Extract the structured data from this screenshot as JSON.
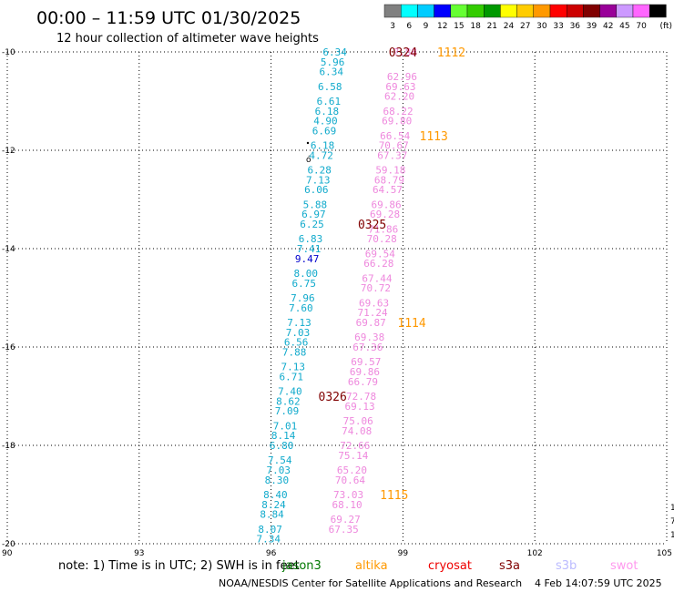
{
  "header": {
    "title": "00:00 – 11:59 UTC 01/30/2025",
    "subtitle": "12 hour collection of altimeter wave heights"
  },
  "legend": {
    "unit": "(ft)",
    "bins": [
      {
        "label": "3",
        "color": "#808080"
      },
      {
        "label": "6",
        "color": "#00ffff"
      },
      {
        "label": "9",
        "color": "#00ccff"
      },
      {
        "label": "12",
        "color": "#0000ff"
      },
      {
        "label": "15",
        "color": "#66ff33"
      },
      {
        "label": "18",
        "color": "#33cc00"
      },
      {
        "label": "21",
        "color": "#009900"
      },
      {
        "label": "24",
        "color": "#ffff00"
      },
      {
        "label": "27",
        "color": "#ffcc00"
      },
      {
        "label": "30",
        "color": "#ff9900"
      },
      {
        "label": "33",
        "color": "#ff0000"
      },
      {
        "label": "36",
        "color": "#cc0000"
      },
      {
        "label": "39",
        "color": "#800000"
      },
      {
        "label": "42",
        "color": "#990099"
      },
      {
        "label": "45",
        "color": "#cc99ff"
      },
      {
        "label": "70",
        "color": "#ff66ff"
      },
      {
        "label": "",
        "color": "#000000"
      }
    ]
  },
  "note": {
    "text": "note: 1) Time is in UTC; 2) SWH is in feet",
    "satellites": [
      {
        "name": "jason3",
        "color": "#007700"
      },
      {
        "name": "altika",
        "color": "#ff9900"
      },
      {
        "name": "cryosat",
        "color": "#ee0000"
      },
      {
        "name": "s3a",
        "color": "#800000"
      },
      {
        "name": "s3b",
        "color": "#bbbbff"
      },
      {
        "name": "swot",
        "color": "#ff99ee"
      }
    ]
  },
  "footer": {
    "credit": "NOAA/NESDIS Center for Satellite Applications and Research",
    "timestamp": "4 Feb 14:07:59 UTC 2025"
  },
  "chart_data": {
    "type": "scatter",
    "title": "00:00 – 11:59 UTC 01/30/2025",
    "subtitle": "12 hour collection of altimeter wave heights",
    "xlim": [
      90,
      105
    ],
    "ylim": [
      -20,
      -10
    ],
    "x_ticks": [
      90,
      93,
      96,
      99,
      102,
      105
    ],
    "y_ticks": [
      -10,
      -12,
      -14,
      -16,
      -18,
      -20
    ],
    "x_tick_labels": [
      "90",
      "93",
      "96",
      "99",
      "102",
      "105"
    ],
    "y_tick_labels": [
      "-10",
      "-12",
      "-14",
      "-16",
      "-18",
      "-20"
    ],
    "grid": true,
    "colors": {
      "cyan": "#11aacc",
      "blue": "#0000cc",
      "pink": "#ee88dd",
      "maroon": "#800000",
      "orange": "#ff9900"
    },
    "series": [
      {
        "name": "s3a",
        "color": "cyan",
        "points": [
          {
            "x": 97.45,
            "y": -10.0,
            "v": "6.34"
          },
          {
            "x": 97.4,
            "y": -10.2,
            "v": "5.96"
          },
          {
            "x": 97.37,
            "y": -10.4,
            "v": "6.34"
          },
          {
            "x": 97.34,
            "y": -10.7,
            "v": "6.58"
          },
          {
            "x": 97.31,
            "y": -11.0,
            "v": "6.61"
          },
          {
            "x": 97.27,
            "y": -11.2,
            "v": "6.18"
          },
          {
            "x": 97.24,
            "y": -11.4,
            "v": "4.90"
          },
          {
            "x": 97.21,
            "y": -11.6,
            "v": "6.69"
          },
          {
            "x": 97.17,
            "y": -11.9,
            "v": "6.18"
          },
          {
            "x": 97.14,
            "y": -12.1,
            "v": "4.72"
          },
          {
            "x": 97.1,
            "y": -12.4,
            "v": "6.28"
          },
          {
            "x": 97.07,
            "y": -12.6,
            "v": "7.13"
          },
          {
            "x": 97.03,
            "y": -12.8,
            "v": "6.06"
          },
          {
            "x": 97.0,
            "y": -13.1,
            "v": "5.88"
          },
          {
            "x": 96.97,
            "y": -13.3,
            "v": "6.97"
          },
          {
            "x": 96.93,
            "y": -13.5,
            "v": "6.25"
          },
          {
            "x": 96.9,
            "y": -13.8,
            "v": "6.83"
          },
          {
            "x": 96.86,
            "y": -14.0,
            "v": "7.41"
          },
          {
            "x": 96.82,
            "y": -14.2,
            "v": "9.47",
            "color": "blue"
          },
          {
            "x": 96.79,
            "y": -14.5,
            "v": "8.00"
          },
          {
            "x": 96.75,
            "y": -14.7,
            "v": "6.75"
          },
          {
            "x": 96.72,
            "y": -15.0,
            "v": "7.96"
          },
          {
            "x": 96.68,
            "y": -15.2,
            "v": "7.60"
          },
          {
            "x": 96.64,
            "y": -15.5,
            "v": "7.13"
          },
          {
            "x": 96.61,
            "y": -15.7,
            "v": "7.03"
          },
          {
            "x": 96.57,
            "y": -15.9,
            "v": "6.56"
          },
          {
            "x": 96.53,
            "y": -16.1,
            "v": "7.88"
          },
          {
            "x": 96.5,
            "y": -16.4,
            "v": "7.13"
          },
          {
            "x": 96.46,
            "y": -16.6,
            "v": "6.71"
          },
          {
            "x": 96.43,
            "y": -16.9,
            "v": "7.40"
          },
          {
            "x": 96.39,
            "y": -17.1,
            "v": "8.62"
          },
          {
            "x": 96.36,
            "y": -17.3,
            "v": "7.09"
          },
          {
            "x": 96.32,
            "y": -17.6,
            "v": "7.01"
          },
          {
            "x": 96.28,
            "y": -17.8,
            "v": "8.14"
          },
          {
            "x": 96.24,
            "y": -18.0,
            "v": "6.80"
          },
          {
            "x": 96.2,
            "y": -18.3,
            "v": "7.54"
          },
          {
            "x": 96.17,
            "y": -18.5,
            "v": "7.03"
          },
          {
            "x": 96.13,
            "y": -18.7,
            "v": "8.30"
          },
          {
            "x": 96.1,
            "y": -19.0,
            "v": "8.40"
          },
          {
            "x": 96.06,
            "y": -19.2,
            "v": "8.24"
          },
          {
            "x": 96.02,
            "y": -19.4,
            "v": "8.84"
          },
          {
            "x": 95.98,
            "y": -19.7,
            "v": "8.07"
          },
          {
            "x": 95.94,
            "y": -19.9,
            "v": "7.34"
          }
        ]
      },
      {
        "name": "swot",
        "color": "pink",
        "points": [
          {
            "x": 99.05,
            "y": -10.0,
            "v": "?.88"
          },
          {
            "x": 98.98,
            "y": -10.5,
            "v": "62.96"
          },
          {
            "x": 98.95,
            "y": -10.7,
            "v": "69.63"
          },
          {
            "x": 98.92,
            "y": -10.9,
            "v": "62.20"
          },
          {
            "x": 98.89,
            "y": -11.2,
            "v": "68.22"
          },
          {
            "x": 98.86,
            "y": -11.4,
            "v": "69.80"
          },
          {
            "x": 98.82,
            "y": -11.7,
            "v": "66.54"
          },
          {
            "x": 98.79,
            "y": -11.9,
            "v": "70.67"
          },
          {
            "x": 98.76,
            "y": -12.1,
            "v": "67.37"
          },
          {
            "x": 98.72,
            "y": -12.4,
            "v": "59.18"
          },
          {
            "x": 98.69,
            "y": -12.6,
            "v": "68.79"
          },
          {
            "x": 98.65,
            "y": -12.8,
            "v": "64.57"
          },
          {
            "x": 98.62,
            "y": -13.1,
            "v": "69.86"
          },
          {
            "x": 98.59,
            "y": -13.3,
            "v": "69.28"
          },
          {
            "x": 98.55,
            "y": -13.6,
            "v": "71.86"
          },
          {
            "x": 98.52,
            "y": -13.8,
            "v": "70.28"
          },
          {
            "x": 98.48,
            "y": -14.1,
            "v": "69.54"
          },
          {
            "x": 98.45,
            "y": -14.3,
            "v": "66.28"
          },
          {
            "x": 98.41,
            "y": -14.6,
            "v": "67.44"
          },
          {
            "x": 98.38,
            "y": -14.8,
            "v": "70.72"
          },
          {
            "x": 98.34,
            "y": -15.1,
            "v": "69.63"
          },
          {
            "x": 98.31,
            "y": -15.3,
            "v": "71.24"
          },
          {
            "x": 98.27,
            "y": -15.5,
            "v": "69.87"
          },
          {
            "x": 98.24,
            "y": -15.8,
            "v": "69.38"
          },
          {
            "x": 98.2,
            "y": -16.0,
            "v": "67.36"
          },
          {
            "x": 98.16,
            "y": -16.3,
            "v": "69.57"
          },
          {
            "x": 98.13,
            "y": -16.5,
            "v": "69.86"
          },
          {
            "x": 98.09,
            "y": -16.7,
            "v": "66.79"
          },
          {
            "x": 98.05,
            "y": -17.0,
            "v": "72.78"
          },
          {
            "x": 98.02,
            "y": -17.2,
            "v": "69.13"
          },
          {
            "x": 97.98,
            "y": -17.5,
            "v": "75.06"
          },
          {
            "x": 97.95,
            "y": -17.7,
            "v": "74.08"
          },
          {
            "x": 97.91,
            "y": -18.0,
            "v": "72.66"
          },
          {
            "x": 97.87,
            "y": -18.2,
            "v": "75.14"
          },
          {
            "x": 97.84,
            "y": -18.5,
            "v": "65.20"
          },
          {
            "x": 97.8,
            "y": -18.7,
            "v": "70.64"
          },
          {
            "x": 97.76,
            "y": -19.0,
            "v": "73.03"
          },
          {
            "x": 97.73,
            "y": -19.2,
            "v": "68.10"
          },
          {
            "x": 97.69,
            "y": -19.5,
            "v": "69.27"
          },
          {
            "x": 97.65,
            "y": -19.7,
            "v": "67.35"
          }
        ]
      }
    ],
    "pass_labels": [
      {
        "text": "0324",
        "x": 99.0,
        "y": -10.0,
        "color": "maroon"
      },
      {
        "text": "0325",
        "x": 98.3,
        "y": -13.5,
        "color": "maroon"
      },
      {
        "text": "0326",
        "x": 97.4,
        "y": -17.0,
        "color": "maroon"
      },
      {
        "text": "1112",
        "x": 100.1,
        "y": -10.0,
        "color": "orange"
      },
      {
        "text": "1113",
        "x": 99.7,
        "y": -11.7,
        "color": "orange"
      },
      {
        "text": "1114",
        "x": 99.2,
        "y": -15.5,
        "color": "orange"
      },
      {
        "text": "1115",
        "x": 98.8,
        "y": -19.0,
        "color": "orange"
      }
    ]
  }
}
